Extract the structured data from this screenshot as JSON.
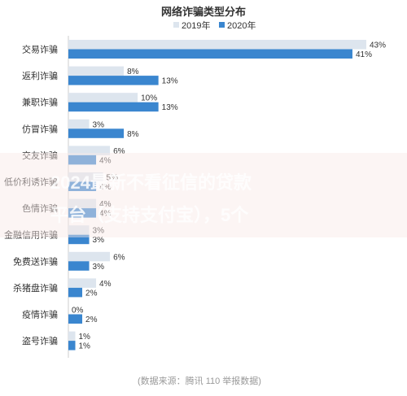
{
  "chart_data": {
    "type": "bar",
    "orientation": "horizontal",
    "title": "网络诈骗类型分布",
    "categories": [
      "交易诈骗",
      "返利诈骗",
      "兼职诈骗",
      "仿冒诈骗",
      "交友诈骗",
      "低价利诱诈骗",
      "色情诈骗",
      "金融信用诈骗",
      "免费送诈骗",
      "杀猪盘诈骗",
      "疫情诈骗",
      "盗号诈骗"
    ],
    "series": [
      {
        "name": "2019年",
        "color": "#dde5ee",
        "values": [
          43,
          8,
          10,
          3,
          6,
          5,
          4,
          3,
          6,
          4,
          0,
          1
        ]
      },
      {
        "name": "2020年",
        "color": "#3a86cf",
        "values": [
          41,
          13,
          13,
          8,
          4,
          4,
          4,
          3,
          3,
          2,
          2,
          1
        ]
      }
    ],
    "value_suffix": "%",
    "xlim": [
      0,
      45
    ],
    "legend_position": "top",
    "source": "(数据来源：腾讯 110 举报数据)",
    "grid": false
  },
  "watermark": {
    "line1": "2024最新不看征信的贷款",
    "line2": "平台（支持支付宝），5个"
  }
}
